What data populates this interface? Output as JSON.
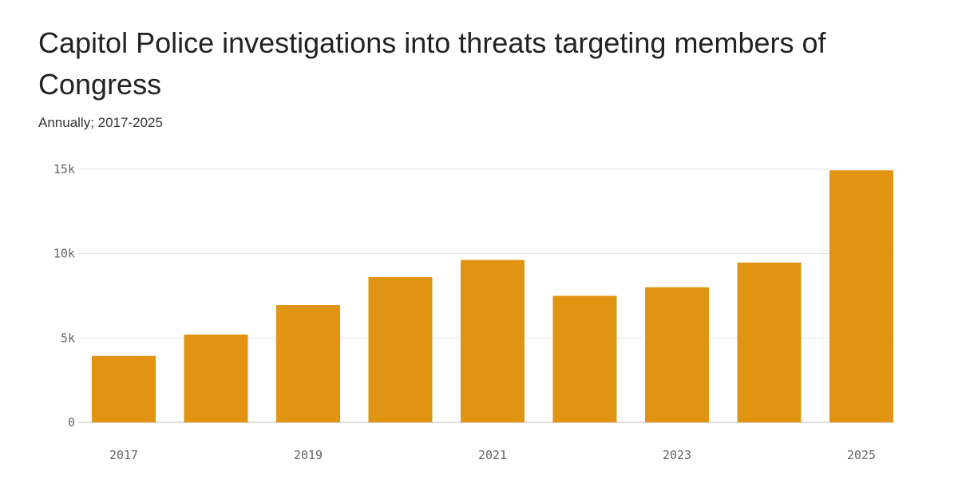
{
  "chart_data": {
    "type": "bar",
    "title": "Capitol Police investigations into threats targeting members of Congress",
    "subtitle": "Annually; 2017-2025",
    "categories": [
      "2017",
      "2018",
      "2019",
      "2020",
      "2021",
      "2022",
      "2023",
      "2024",
      "2025"
    ],
    "values": [
      3939,
      5206,
      6955,
      8613,
      9625,
      7501,
      8008,
      9474,
      14938
    ],
    "x_tick_labels": [
      "2017",
      "",
      "2019",
      "",
      "2021",
      "",
      "2023",
      "",
      "2025"
    ],
    "y_ticks": [
      0,
      5000,
      10000,
      15000
    ],
    "y_tick_labels": [
      "0",
      "5k",
      "10k",
      "15k"
    ],
    "ylim": [
      0,
      15000
    ],
    "xlabel": "",
    "ylabel": "",
    "grid": true,
    "bar_color": "#E09412"
  }
}
